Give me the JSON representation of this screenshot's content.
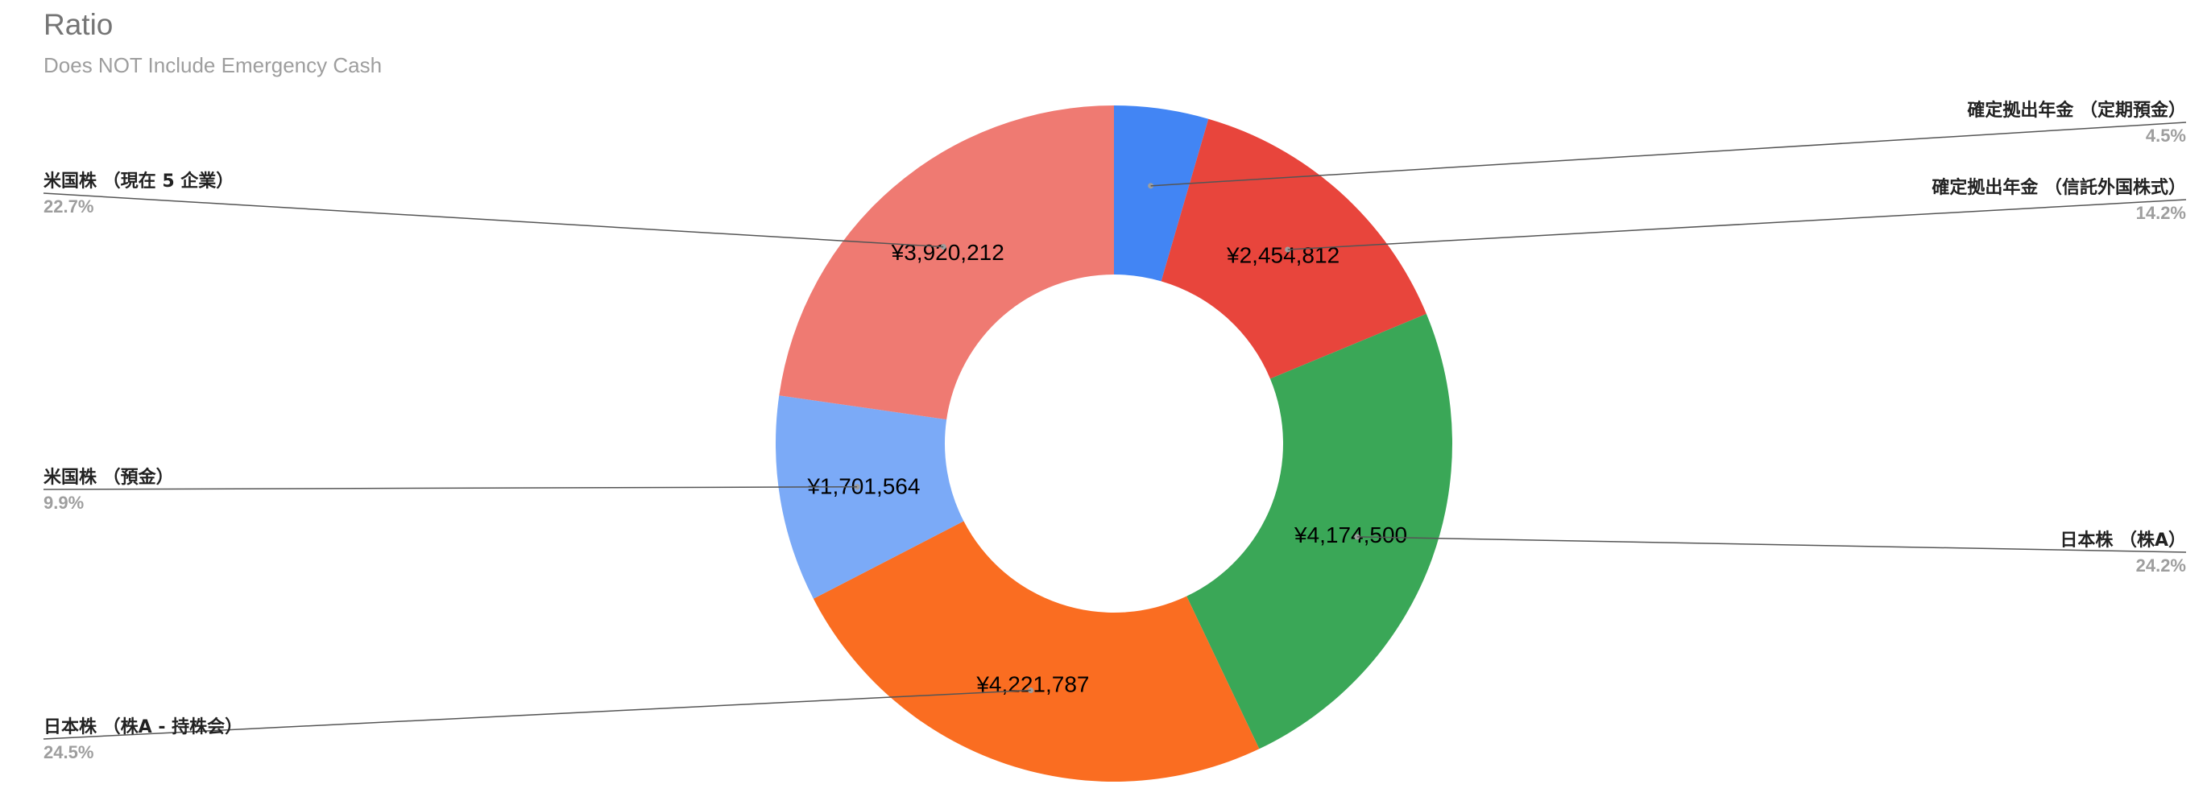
{
  "chart_data": {
    "type": "pie",
    "donut": true,
    "title": "Ratio",
    "subtitle": "Does NOT Include Emergency Cash",
    "legend": "labels beside slices",
    "slices": [
      {
        "label": "確定拠出年金 （定期預金）",
        "value": 777000,
        "value_label": "",
        "percent": "4.5%",
        "color": "#4285f4"
      },
      {
        "label": "確定拠出年金 （信託外国株式）",
        "value": 2454812,
        "value_label": "¥2,454,812",
        "percent": "14.2%",
        "color": "#e8453c"
      },
      {
        "label": "日本株 （株A）",
        "value": 4174500,
        "value_label": "¥4,174,500",
        "percent": "24.2%",
        "color": "#3aa757"
      },
      {
        "label": "日本株 （株A - 持株会）",
        "value": 4221787,
        "value_label": "¥4,221,787",
        "percent": "24.5%",
        "color": "#fa6d21"
      },
      {
        "label": "米国株 （預金）",
        "value": 1701564,
        "value_label": "¥1,701,564",
        "percent": "9.9%",
        "color": "#7baaf7"
      },
      {
        "label": "米国株 （現在 5 企業）",
        "value": 3920212,
        "value_label": "¥3,920,212",
        "percent": "22.7%",
        "color": "#ef7a72"
      }
    ]
  }
}
